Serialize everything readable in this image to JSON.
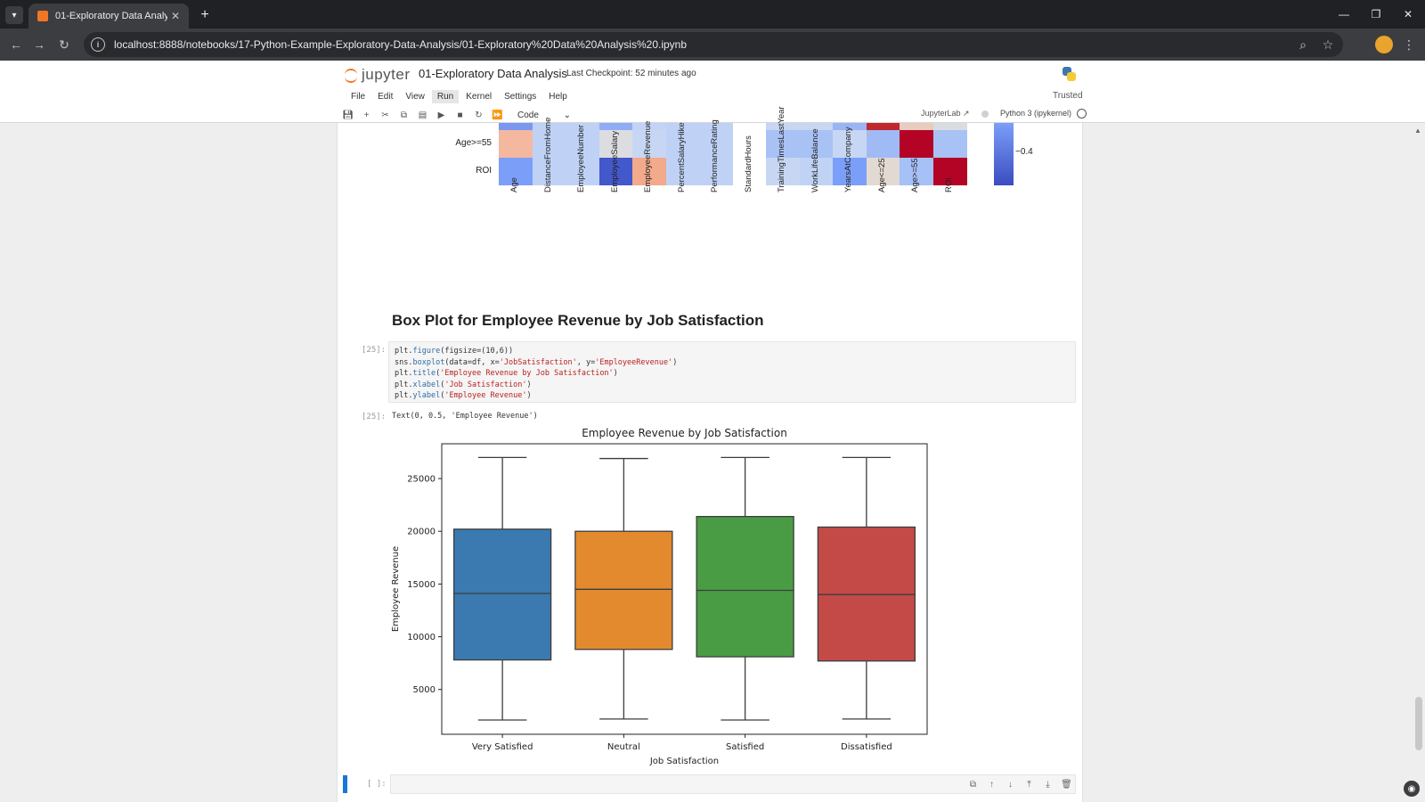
{
  "browser": {
    "tab_title": "01-Exploratory Data Analysis",
    "url": "localhost:8888/notebooks/17-Python-Example-Exploratory-Data-Analysis/01-Exploratory%20Data%20Analysis%20.ipynb"
  },
  "jupyter": {
    "logo_text": "jupyter",
    "notebook_name": "01-Exploratory Data Analysis",
    "checkpoint": "Last Checkpoint: 52 minutes ago",
    "menu": [
      "File",
      "Edit",
      "View",
      "Run",
      "Kernel",
      "Settings",
      "Help"
    ],
    "active_menu": "Run",
    "trusted": "Trusted",
    "cell_type": "Code",
    "jupyterlab_link": "JupyterLab",
    "kernel": "Python 3 (ipykernel)"
  },
  "heatmap": {
    "rows": [
      "Age>=55",
      "ROI"
    ],
    "columns": [
      "Age",
      "DistanceFromHome",
      "EmployeeNumber",
      "EmployeeSalary",
      "EmployeeRevenue",
      "PercentSalaryHike",
      "PerformanceRating",
      "StandardHours",
      "TrainingTimesLastYear",
      "WorkLifeBalance",
      "YearsAtCompany",
      "Age<=25",
      "Age>=55",
      "ROI"
    ],
    "top_strip_colors": [
      "#7a98f0",
      "#bfd2f6",
      "#bfd2f6",
      "#8fadf5",
      "#c2d4f6",
      "#bfd2f6",
      "#bfd2f6",
      "#ffffff",
      "#c7d7f3",
      "#c7d7f3",
      "#9ab5f6",
      "#c0282d",
      "#e8ccc0",
      "#d9dce1"
    ],
    "row_colors": [
      [
        "#f4b79f",
        "#bfd2f6",
        "#bfd2f6",
        "#dcdde1",
        "#c7d7f3",
        "#bfd2f6",
        "#bfd2f6",
        "#ffffff",
        "#a9c2f5",
        "#a9c2f5",
        "#c7d7f3",
        "#a0baf5",
        "#b40426",
        "#a9c2f5"
      ],
      [
        "#7b9ff9",
        "#bfd2f6",
        "#bfd2f6",
        "#4358cb",
        "#f2a98c",
        "#bfd2f6",
        "#bfd2f6",
        "#ffffff",
        "#c7d7f3",
        "#c0d3f5",
        "#7b9ff9",
        "#e3d9d3",
        "#a6c1f7",
        "#b40426"
      ]
    ],
    "colorbar_tick": "−0.4"
  },
  "markdown_heading": "Box Plot for Employee Revenue by Job Satisfaction",
  "code_cell": {
    "prompt": "[25]:",
    "lines": [
      [
        {
          "t": "plt."
        },
        {
          "t": "figure",
          "c": "fn"
        },
        {
          "t": "(figsize=(10,6))"
        }
      ],
      [
        {
          "t": "sns."
        },
        {
          "t": "boxplot",
          "c": "fn"
        },
        {
          "t": "(data=df, x="
        },
        {
          "t": "'JobSatisfaction'",
          "c": "str"
        },
        {
          "t": ", y="
        },
        {
          "t": "'EmployeeRevenue'",
          "c": "str"
        },
        {
          "t": ")"
        }
      ],
      [
        {
          "t": "plt."
        },
        {
          "t": "title",
          "c": "fn"
        },
        {
          "t": "("
        },
        {
          "t": "'Employee Revenue by Job Satisfaction'",
          "c": "str"
        },
        {
          "t": ")"
        }
      ],
      [
        {
          "t": "plt."
        },
        {
          "t": "xlabel",
          "c": "fn"
        },
        {
          "t": "("
        },
        {
          "t": "'Job Satisfaction'",
          "c": "str"
        },
        {
          "t": ")"
        }
      ],
      [
        {
          "t": "plt."
        },
        {
          "t": "ylabel",
          "c": "fn"
        },
        {
          "t": "("
        },
        {
          "t": "'Employee Revenue'",
          "c": "str"
        },
        {
          "t": ")"
        }
      ]
    ]
  },
  "output": {
    "prompt": "[25]:",
    "text": "Text(0, 0.5, 'Employee Revenue')"
  },
  "empty_cell_prompt": "[ ]:",
  "chart_data": {
    "type": "box",
    "title": "Employee Revenue by Job Satisfaction",
    "xlabel": "Job Satisfaction",
    "ylabel": "Employee Revenue",
    "categories": [
      "Very Satisfied",
      "Neutral",
      "Satisfied",
      "Dissatisfied"
    ],
    "boxes": [
      {
        "min": 2100,
        "q1": 7800,
        "median": 14100,
        "q3": 20200,
        "max": 27000,
        "color": "#3a7ab0"
      },
      {
        "min": 2200,
        "q1": 8800,
        "median": 14500,
        "q3": 20000,
        "max": 26900,
        "color": "#e38a2f"
      },
      {
        "min": 2100,
        "q1": 8100,
        "median": 14400,
        "q3": 21400,
        "max": 27000,
        "color": "#4a9c44"
      },
      {
        "min": 2200,
        "q1": 7700,
        "median": 14000,
        "q3": 20400,
        "max": 27000,
        "color": "#c44a48"
      }
    ],
    "yticks": [
      5000,
      10000,
      15000,
      20000,
      25000
    ],
    "ylim": [
      750,
      28300
    ],
    "grid": false
  }
}
